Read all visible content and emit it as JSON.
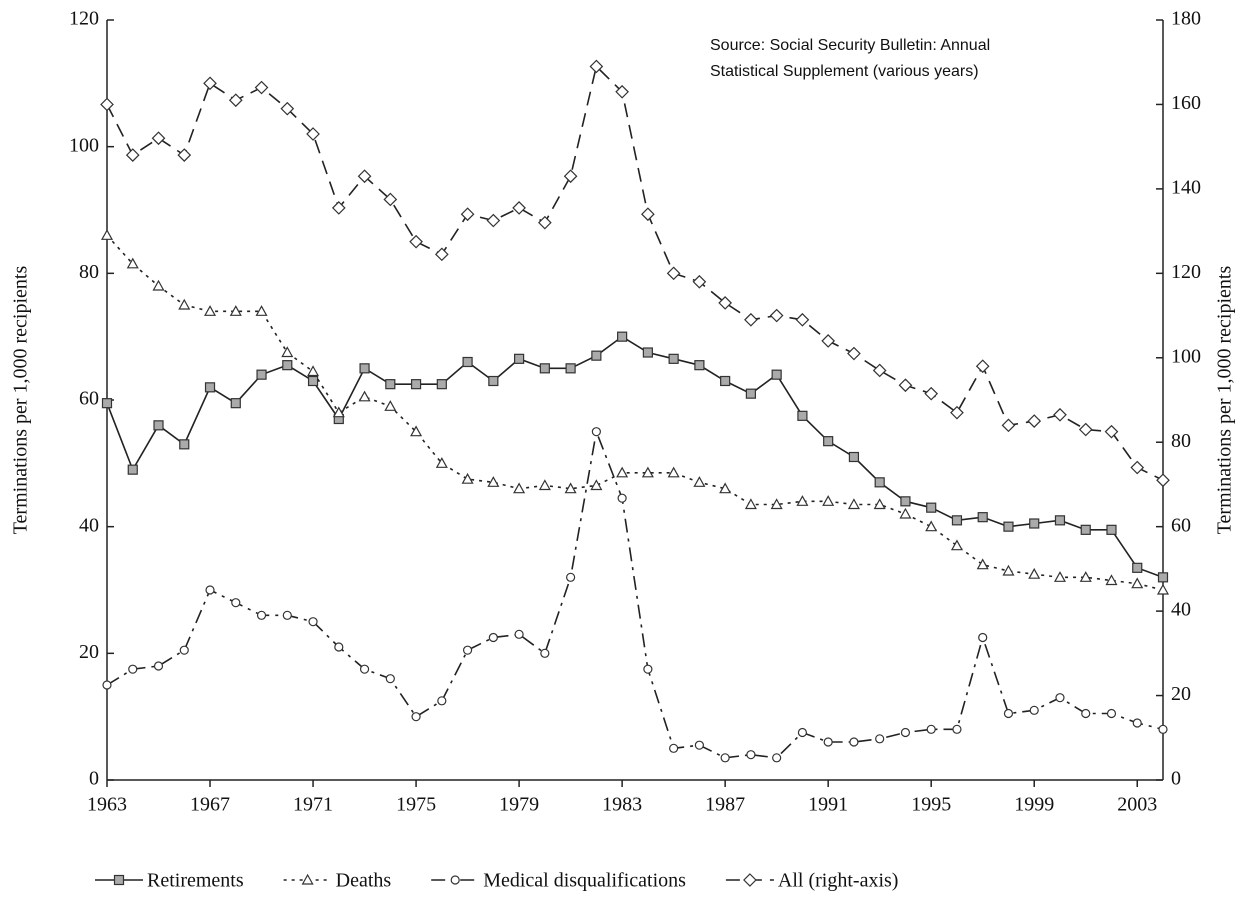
{
  "chart_data": {
    "type": "line",
    "annotation": [
      "Source: Social Security Bulletin: Annual",
      "Statistical Supplement (various years)"
    ],
    "ylabel": "Terminations per 1,000 recipients",
    "y2label": "Terminations per 1,000 recipients",
    "x": [
      1963,
      1964,
      1965,
      1966,
      1967,
      1968,
      1969,
      1970,
      1971,
      1972,
      1973,
      1974,
      1975,
      1976,
      1977,
      1978,
      1979,
      1980,
      1981,
      1982,
      1983,
      1984,
      1985,
      1986,
      1987,
      1988,
      1989,
      1990,
      1991,
      1992,
      1993,
      1994,
      1995,
      1996,
      1997,
      1998,
      1999,
      2000,
      2001,
      2002,
      2003,
      2004
    ],
    "xlim": [
      1963,
      2004
    ],
    "xticks": [
      1963,
      1967,
      1971,
      1975,
      1979,
      1983,
      1987,
      1991,
      1995,
      1999,
      2003
    ],
    "ylim": [
      0,
      120
    ],
    "yticks": [
      0,
      20,
      40,
      60,
      80,
      100,
      120
    ],
    "y2lim": [
      0,
      180
    ],
    "y2ticks": [
      0,
      20,
      40,
      60,
      80,
      100,
      120,
      140,
      160,
      180
    ],
    "grid": false,
    "legend": "bottom",
    "series": [
      {
        "name": "Retirements",
        "color": "#222222",
        "marker": "square",
        "marker_color": "#aaaaaa",
        "dash": "solid",
        "values": [
          59.5,
          49,
          56,
          53,
          62,
          59.5,
          64,
          65.5,
          63,
          57,
          65,
          62.5,
          62.5,
          62.5,
          66,
          63,
          66.5,
          65,
          65,
          67,
          70,
          67.5,
          66.5,
          65.5,
          63,
          61,
          64,
          57.5,
          53.5,
          51,
          47,
          44,
          43,
          41,
          41.5,
          40,
          40.5,
          41,
          39.5,
          39.5,
          33.5,
          32
        ]
      },
      {
        "name": "Deaths",
        "color": "#222222",
        "marker": "triangle",
        "marker_color": "#ffffff",
        "dash": "dotted",
        "values": [
          86,
          81.5,
          78,
          75,
          74,
          74,
          74,
          67.5,
          64.5,
          58,
          60.5,
          59,
          55,
          50,
          47.5,
          47,
          46,
          46.5,
          46,
          46.5,
          48.5,
          48.5,
          48.5,
          47,
          46,
          43.5,
          43.5,
          44,
          44,
          43.5,
          43.5,
          42,
          40,
          37,
          34,
          33,
          32.5,
          32,
          32,
          31.5,
          31,
          30
        ]
      },
      {
        "name": "Medical disqualifications",
        "color": "#222222",
        "marker": "circle",
        "marker_color": "#ffffff",
        "dash": "dashdot",
        "values": [
          15,
          17.5,
          18,
          20.5,
          30,
          28,
          26,
          26,
          25,
          21,
          17.5,
          16,
          10,
          12.5,
          20.5,
          22.5,
          23,
          20,
          32,
          55,
          44.5,
          17.5,
          5,
          5.5,
          3.5,
          4,
          3.5,
          7.5,
          6,
          6,
          6.5,
          7.5,
          8,
          8,
          22.5,
          10.5,
          11,
          13,
          10.5,
          10.5,
          9,
          8
        ]
      },
      {
        "name": "All (right-axis)",
        "color": "#222222",
        "marker": "diamond",
        "marker_color": "#ffffff",
        "dash": "dashed",
        "axis": "y2",
        "values": [
          160,
          148,
          152,
          148,
          165,
          161,
          164,
          159,
          153,
          135.5,
          143,
          137.5,
          127.5,
          124.5,
          134,
          132.5,
          135.5,
          132,
          143,
          169,
          163,
          134,
          120,
          118,
          113,
          109,
          110,
          109,
          104,
          101,
          97,
          93.5,
          91.5,
          87,
          98,
          84,
          85,
          86.5,
          83,
          82.5,
          74,
          71
        ]
      }
    ]
  }
}
